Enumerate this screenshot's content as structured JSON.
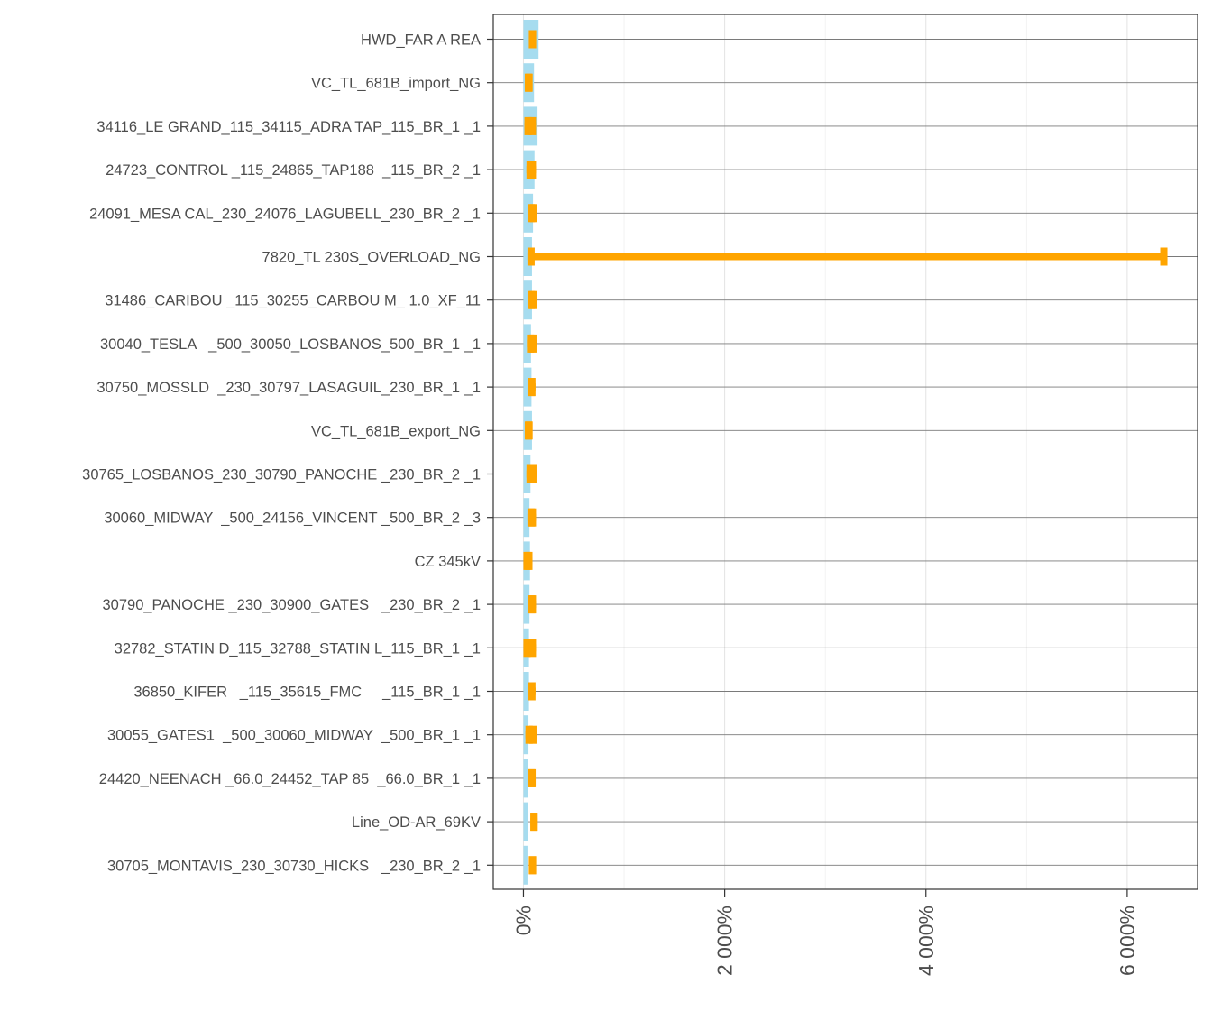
{
  "chart_data": {
    "type": "bar",
    "orientation": "horizontal",
    "title": "",
    "xlabel": "",
    "ylabel": "",
    "categories": [
      "HWD_FAR A REA",
      "VC_TL_681B_import_NG",
      "34116_LE GRAND_115_34115_ADRA TAP_115_BR_1 _1",
      "24723_CONTROL _115_24865_TAP188  _115_BR_2 _1",
      "24091_MESA CAL_230_24076_LAGUBELL_230_BR_2 _1",
      "7820_TL 230S_OVERLOAD_NG",
      "31486_CARIBOU _115_30255_CARBOU M_ 1.0_XF_11",
      "30040_TESLA   _500_30050_LOSBANOS_500_BR_1 _1",
      "30750_MOSSLD  _230_30797_LASAGUIL_230_BR_1 _1",
      "VC_TL_681B_export_NG",
      "30765_LOSBANOS_230_30790_PANOCHE _230_BR_2 _1",
      "30060_MIDWAY  _500_24156_VINCENT _500_BR_2 _3",
      "CZ 345kV",
      "30790_PANOCHE _230_30900_GATES   _230_BR_2 _1",
      "32782_STATIN D_115_32788_STATIN L_115_BR_1 _1",
      "36850_KIFER   _115_35615_FMC     _115_BR_1 _1",
      "30055_GATES1  _500_30060_MIDWAY  _500_BR_1 _1",
      "24420_NEENACH _66.0_24452_TAP 85  _66.0_BR_1 _1",
      "Line_OD-AR_69KV",
      "30705_MONTAVIS_230_30730_HICKS   _230_BR_2 _1"
    ],
    "series": [
      {
        "values": [
          150,
          105,
          140,
          110,
          95,
          85,
          85,
          75,
          80,
          85,
          70,
          60,
          65,
          60,
          55,
          55,
          50,
          45,
          45,
          40
        ],
        "color": "#a6dcef"
      },
      {
        "low": [
          55,
          20,
          10,
          30,
          65,
          40,
          60,
          35,
          45,
          20,
          30,
          40,
          0,
          45,
          0,
          45,
          20,
          50,
          70,
          55
        ],
        "high": [
          125,
          85,
          125,
          125,
          115,
          6400,
          115,
          130,
          120,
          85,
          130,
          125,
          90,
          125,
          125,
          120,
          130,
          115,
          140,
          125
        ],
        "color": "#ffa500"
      }
    ],
    "xlim": [
      -300,
      6700
    ],
    "xticks": [
      0,
      2000,
      4000,
      6000
    ],
    "xtick_labels": [
      "0%",
      "2 000%",
      "4 000%",
      "6 000%"
    ],
    "grid": true,
    "legend": "none"
  }
}
